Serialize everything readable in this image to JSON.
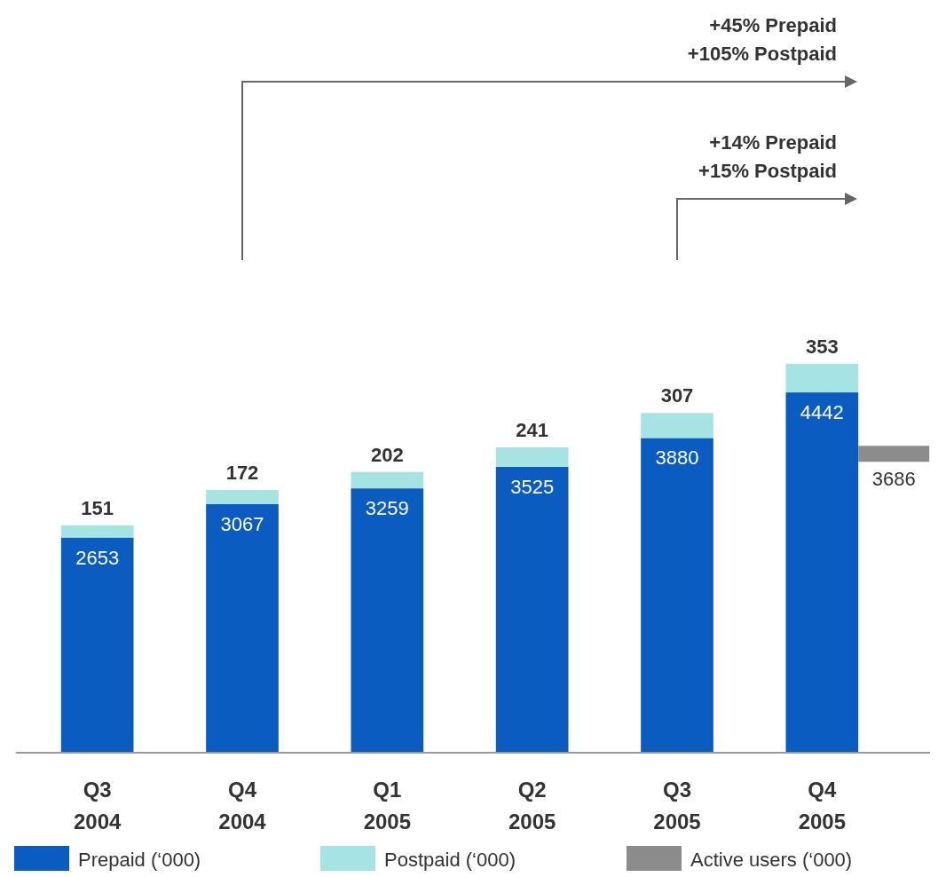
{
  "chart_data": {
    "type": "bar",
    "stacked": true,
    "data_labels": true,
    "legend": "bottom",
    "categories": [
      "Q3 2004",
      "Q4 2004",
      "Q1 2005",
      "Q2 2005",
      "Q3 2005",
      "Q4 2005"
    ],
    "series": [
      {
        "name": "Prepaid (‘000)",
        "color": "#0a5cc0",
        "values": [
          2653,
          3067,
          3259,
          3525,
          3880,
          4442
        ]
      },
      {
        "name": "Postpaid (‘000)",
        "color": "#a6e4e4",
        "values": [
          151,
          172,
          202,
          241,
          307,
          353
        ]
      }
    ],
    "ref_lines": [
      {
        "axis": "y",
        "value": 3686,
        "label": "3686",
        "color": "#8c8c8c"
      }
    ],
    "annotations": [
      "+45% Prepaid\n+105% Postpaid",
      "+14% Prepaid\n+15% Postpaid",
      "Active users (‘000)"
    ]
  }
}
